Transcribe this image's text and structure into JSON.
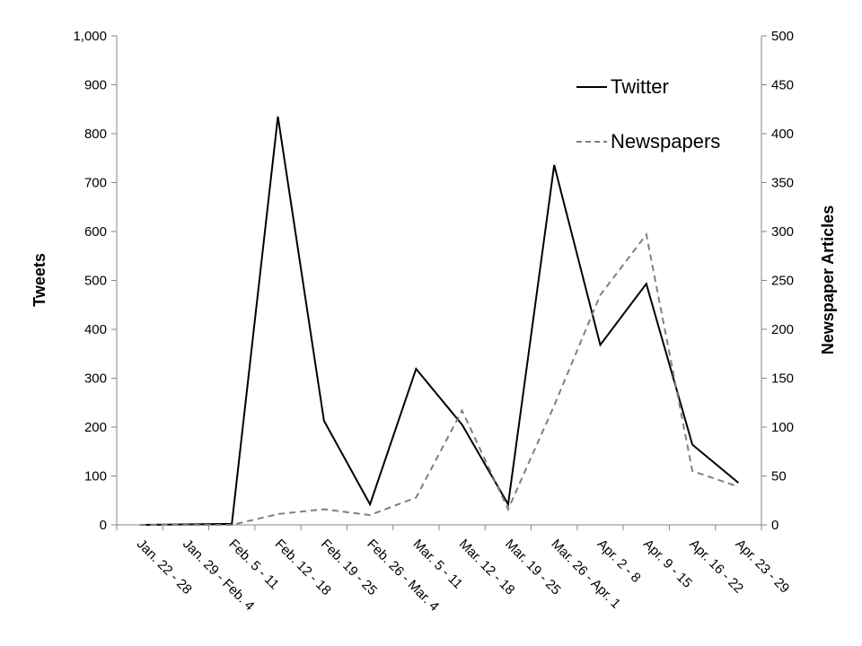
{
  "chart_data": {
    "type": "line",
    "categories": [
      "Jan. 22 - 28",
      "Jan. 29 - Feb. 4",
      "Feb. 5 - 11",
      "Feb. 12 - 18",
      "Feb. 19 - 25",
      "Feb. 26 - Mar. 4",
      "Mar. 5 - 11",
      "Mar. 12 - 18",
      "Mar. 19 - 25",
      "Mar. 26 - Apr. 1",
      "Apr. 2 - 8",
      "Apr. 9 - 15",
      "Apr. 16 - 22",
      "Apr. 23 - 29"
    ],
    "series": [
      {
        "name": "Twitter",
        "axis": "left",
        "style": "solid",
        "color": "#000000",
        "values": [
          0,
          1,
          2,
          835,
          213,
          42,
          319,
          205,
          42,
          736,
          368,
          493,
          164,
          86
        ]
      },
      {
        "name": "Newspapers",
        "axis": "right",
        "style": "dashed",
        "color": "#7f7f7f",
        "values": [
          0,
          0,
          0,
          11,
          16,
          10,
          28,
          117,
          16,
          122,
          235,
          297,
          55,
          39
        ]
      }
    ],
    "ylabel": "Tweets",
    "y2label": "Newspaper Articles",
    "ylim": [
      0,
      1000
    ],
    "y2lim": [
      0,
      500
    ],
    "yticks": [
      "0",
      "100",
      "200",
      "300",
      "400",
      "500",
      "600",
      "700",
      "800",
      "900",
      "1,000"
    ],
    "y2ticks": [
      "0",
      "50",
      "100",
      "150",
      "200",
      "250",
      "300",
      "350",
      "400",
      "450",
      "500"
    ],
    "grid": false,
    "legend": {
      "placement": "top-right"
    }
  }
}
